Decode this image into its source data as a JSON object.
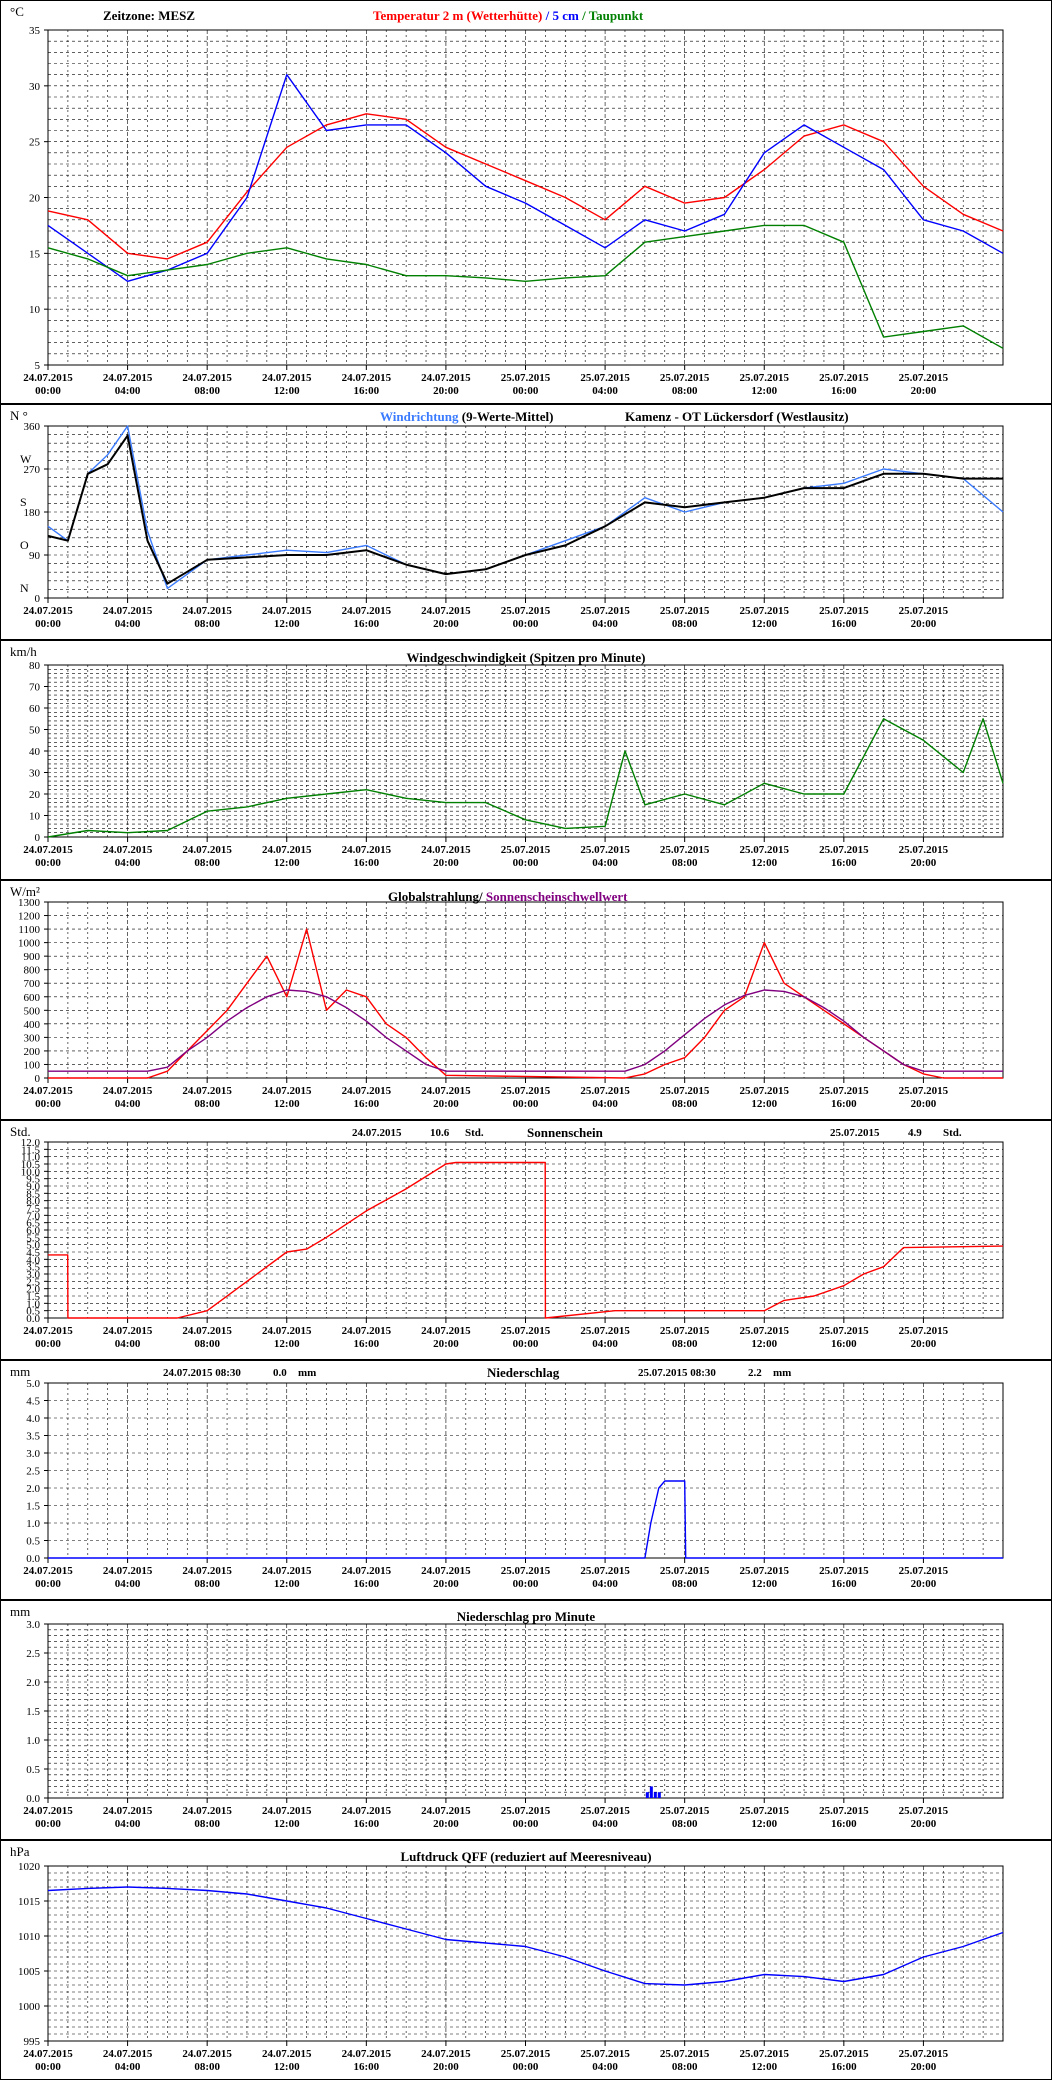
{
  "colors": {
    "temp": "#ff0000",
    "soil": "#0000ff",
    "dew": "#008000",
    "winddir_line": "#3a7bff",
    "winddir_mean": "#000000",
    "wind": "#008000",
    "radiation": "#ff0000",
    "threshold": "#800080",
    "sunshine": "#ff0000",
    "precip": "#0000ff",
    "pressure": "#0000ff",
    "grid": "#000000"
  },
  "x_ticks": [
    [
      "24.07.2015",
      "00:00"
    ],
    [
      "24.07.2015",
      "04:00"
    ],
    [
      "24.07.2015",
      "08:00"
    ],
    [
      "24.07.2015",
      "12:00"
    ],
    [
      "24.07.2015",
      "16:00"
    ],
    [
      "24.07.2015",
      "20:00"
    ],
    [
      "25.07.2015",
      "00:00"
    ],
    [
      "25.07.2015",
      "04:00"
    ],
    [
      "25.07.2015",
      "08:00"
    ],
    [
      "25.07.2015",
      "12:00"
    ],
    [
      "25.07.2015",
      "16:00"
    ],
    [
      "25.07.2015",
      "20:00"
    ]
  ],
  "chart_data": [
    {
      "type": "line",
      "unit": "°C",
      "timezone_label": "Zeitzone: MESZ",
      "title_parts": [
        "Temperatur 2 m (Wetterhütte)",
        "  /  ",
        "5 cm",
        " / ",
        "Taupunkt"
      ],
      "ylim": [
        5,
        35
      ],
      "yticks": [
        5,
        10,
        15,
        20,
        25,
        30,
        35
      ],
      "x_hours": [
        0,
        2,
        4,
        6,
        8,
        10,
        12,
        14,
        16,
        18,
        20,
        22,
        24,
        26,
        28,
        30,
        32,
        34,
        36,
        38,
        40,
        42,
        44,
        46,
        48
      ],
      "series": [
        {
          "name": "Temperatur 2 m (Wetterhütte)",
          "values": [
            18.8,
            18.0,
            15.0,
            14.5,
            16.0,
            20.5,
            24.5,
            26.5,
            27.5,
            27.0,
            24.5,
            23.0,
            21.5,
            20.0,
            18.0,
            21.0,
            19.5,
            20.0,
            22.5,
            25.5,
            26.5,
            25.0,
            21.0,
            18.5,
            17.0
          ]
        },
        {
          "name": "5 cm",
          "values": [
            17.5,
            15.0,
            12.5,
            13.5,
            15.0,
            20.0,
            31.0,
            26.0,
            26.5,
            26.5,
            24.0,
            21.0,
            19.5,
            17.5,
            15.5,
            18.0,
            17.0,
            18.5,
            24.0,
            26.5,
            24.5,
            22.5,
            18.0,
            17.0,
            15.0
          ]
        },
        {
          "name": "Taupunkt",
          "values": [
            15.5,
            14.5,
            13.0,
            13.5,
            14.0,
            15.0,
            15.5,
            14.5,
            14.0,
            13.0,
            13.0,
            12.8,
            12.5,
            12.8,
            13.0,
            16.0,
            16.5,
            17.0,
            17.5,
            17.5,
            16.0,
            7.5,
            8.0,
            8.5,
            6.5
          ]
        }
      ]
    },
    {
      "type": "line",
      "unit": "N °",
      "title_parts": [
        "Windrichtung",
        " (9-Werte-Mittel)",
        "Kamenz - OT Lückersdorf (Westlausitz)"
      ],
      "ylim": [
        0,
        360
      ],
      "yticks": [
        0,
        90,
        180,
        270,
        360
      ],
      "ylabels": [
        [
          "0",
          "N"
        ],
        [
          "90",
          "O"
        ],
        [
          "180",
          "S"
        ],
        [
          "270",
          "W"
        ],
        [
          "360",
          ""
        ]
      ],
      "x_hours": [
        0,
        1,
        2,
        3,
        4,
        5,
        6,
        8,
        10,
        12,
        14,
        16,
        18,
        20,
        22,
        24,
        26,
        28,
        30,
        32,
        34,
        36,
        38,
        40,
        42,
        44,
        46,
        48
      ],
      "series": [
        {
          "name": "Windrichtung",
          "values": [
            150,
            120,
            260,
            300,
            360,
            140,
            20,
            80,
            90,
            100,
            95,
            110,
            70,
            50,
            60,
            90,
            120,
            150,
            210,
            180,
            200,
            210,
            230,
            240,
            270,
            260,
            250,
            180
          ]
        },
        {
          "name": "9-Werte-Mittel",
          "values": [
            130,
            120,
            260,
            280,
            340,
            120,
            30,
            80,
            85,
            90,
            90,
            100,
            70,
            50,
            60,
            90,
            110,
            150,
            200,
            190,
            200,
            210,
            230,
            230,
            260,
            260,
            250,
            250
          ]
        }
      ]
    },
    {
      "type": "line",
      "unit": "km/h",
      "title_parts": [
        "Windgeschwindigkeit (Spitzen pro Minute)"
      ],
      "ylim": [
        0,
        80
      ],
      "yticks": [
        0,
        10,
        20,
        30,
        40,
        50,
        60,
        70,
        80
      ],
      "x_hours": [
        0,
        2,
        4,
        6,
        8,
        10,
        12,
        14,
        16,
        18,
        20,
        22,
        24,
        26,
        28,
        29,
        30,
        32,
        34,
        36,
        38,
        40,
        42,
        44,
        46,
        47,
        48
      ],
      "series": [
        {
          "name": "Windgeschwindigkeit",
          "values": [
            0,
            3,
            2,
            3,
            12,
            14,
            18,
            20,
            22,
            18,
            16,
            16,
            8,
            4,
            5,
            40,
            15,
            20,
            15,
            25,
            20,
            20,
            55,
            45,
            30,
            55,
            25
          ]
        }
      ]
    },
    {
      "type": "line",
      "unit": "W/m²",
      "title_parts": [
        "Globalstrahlung",
        "/ ",
        "Sonnenscheinschwellwert"
      ],
      "ylim": [
        0,
        1300
      ],
      "yticks": [
        0,
        100,
        200,
        300,
        400,
        500,
        600,
        700,
        800,
        900,
        1000,
        1100,
        1200,
        1300
      ],
      "x_hours": [
        0,
        5,
        6,
        7,
        8,
        9,
        10,
        11,
        12,
        13,
        14,
        15,
        16,
        17,
        18,
        19,
        20,
        29,
        30,
        31,
        32,
        33,
        34,
        35,
        36,
        37,
        38,
        39,
        40,
        41,
        42,
        43,
        44,
        45,
        48
      ],
      "series": [
        {
          "name": "Globalstrahlung",
          "values": [
            0,
            0,
            50,
            200,
            350,
            500,
            700,
            900,
            600,
            1100,
            500,
            650,
            600,
            400,
            300,
            150,
            20,
            0,
            30,
            100,
            150,
            300,
            500,
            600,
            1000,
            700,
            600,
            500,
            400,
            300,
            200,
            100,
            30,
            0,
            0
          ]
        },
        {
          "name": "Sonnenscheinschwellwert",
          "values": [
            50,
            50,
            80,
            200,
            300,
            420,
            520,
            600,
            650,
            640,
            600,
            520,
            420,
            300,
            200,
            100,
            50,
            50,
            100,
            200,
            320,
            440,
            540,
            610,
            650,
            640,
            600,
            520,
            420,
            300,
            200,
            100,
            50,
            50,
            50
          ]
        }
      ]
    },
    {
      "type": "line",
      "unit": "Std.",
      "title_parts": [
        "Sonnenschein"
      ],
      "annotations": [
        {
          "date": "24.07.2015",
          "value": "10.6",
          "unit": "Std."
        },
        {
          "date": "25.07.2015",
          "value": "4.9",
          "unit": "Std."
        }
      ],
      "ylim": [
        0,
        12
      ],
      "yticks": [
        0,
        0.5,
        1,
        1.5,
        2,
        2.5,
        3,
        3.5,
        4,
        4.5,
        5,
        5.5,
        6,
        6.5,
        7,
        7.5,
        8,
        8.5,
        9,
        9.5,
        10,
        10.5,
        11,
        11.5,
        12
      ],
      "x_hours": [
        0,
        0.99,
        1,
        6.5,
        8,
        12,
        13,
        14,
        16,
        18,
        20,
        20.5,
        24.99,
        25,
        28.5,
        36,
        37,
        38.5,
        40,
        41,
        42,
        43,
        48
      ],
      "series": [
        {
          "name": "Sonnenschein",
          "values": [
            4.3,
            4.3,
            0,
            0,
            0.5,
            4.5,
            4.7,
            5.5,
            7.3,
            8.8,
            10.5,
            10.6,
            10.6,
            0,
            0.5,
            0.5,
            1.2,
            1.5,
            2.2,
            3.0,
            3.5,
            4.8,
            4.9
          ]
        }
      ]
    },
    {
      "type": "line",
      "unit": "mm",
      "title_parts": [
        "Niederschlag"
      ],
      "annotations": [
        {
          "date": "24.07.2015 08:30",
          "value": "0.0",
          "unit": "mm"
        },
        {
          "date": "25.07.2015 08:30",
          "value": "2.2",
          "unit": "mm"
        }
      ],
      "ylim": [
        0,
        5
      ],
      "yticks": [
        0,
        0.5,
        1,
        1.5,
        2,
        2.5,
        3,
        3.5,
        4,
        4.5,
        5
      ],
      "x_hours": [
        0,
        30,
        30.3,
        30.7,
        31,
        32,
        32.05,
        48
      ],
      "series": [
        {
          "name": "Niederschlag",
          "values": [
            0,
            0,
            1.0,
            2.0,
            2.2,
            2.2,
            0,
            0
          ]
        }
      ]
    },
    {
      "type": "bar",
      "unit": "mm",
      "title_parts": [
        "Niederschlag pro Minute"
      ],
      "ylim": [
        0,
        3
      ],
      "yticks": [
        0,
        0.5,
        1,
        1.5,
        2,
        2.5,
        3
      ],
      "x_hours": [
        30.1,
        30.3,
        30.5,
        30.7
      ],
      "series": [
        {
          "name": "Niederschlag pro Minute",
          "values": [
            0.1,
            0.2,
            0.1,
            0.1
          ]
        }
      ]
    },
    {
      "type": "line",
      "unit": "hPa",
      "title_parts": [
        "Luftdruck QFF (reduziert auf Meeresniveau)"
      ],
      "ylim": [
        995,
        1020
      ],
      "yticks": [
        995,
        1000,
        1005,
        1010,
        1015,
        1020
      ],
      "x_hours": [
        0,
        2,
        4,
        6,
        8,
        10,
        12,
        14,
        16,
        18,
        20,
        22,
        24,
        26,
        28,
        30,
        32,
        34,
        36,
        38,
        40,
        42,
        44,
        46,
        48
      ],
      "series": [
        {
          "name": "Luftdruck QFF",
          "values": [
            1016.5,
            1016.8,
            1017,
            1016.8,
            1016.5,
            1016,
            1015,
            1014,
            1012.5,
            1011,
            1009.5,
            1009,
            1008.5,
            1007,
            1005,
            1003.2,
            1003,
            1003.5,
            1004.5,
            1004.2,
            1003.5,
            1004.5,
            1007,
            1008.5,
            1010.5
          ]
        }
      ]
    }
  ]
}
